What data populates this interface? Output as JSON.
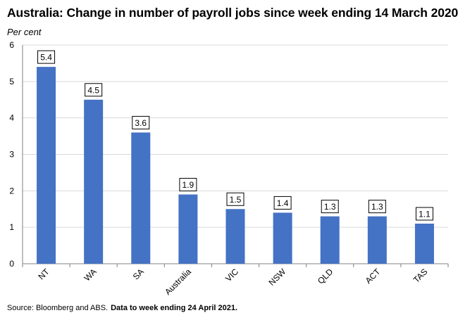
{
  "chart_data": {
    "type": "bar",
    "title": "Australia: Change in number of payroll jobs since week ending 14 March 2020",
    "ylabel": "Per cent",
    "xlabel": "",
    "categories": [
      "NT",
      "WA",
      "SA",
      "Australia",
      "VIC",
      "NSW",
      "QLD",
      "ACT",
      "TAS"
    ],
    "values": [
      5.4,
      4.5,
      3.6,
      1.9,
      1.5,
      1.4,
      1.3,
      1.3,
      1.1
    ],
    "data_labels": [
      "5.4",
      "4.5",
      "3.6",
      "1.9",
      "1.5",
      "1.4",
      "1.3",
      "1.3",
      "1.1"
    ],
    "ylim": [
      0,
      6
    ],
    "yticks": [
      0,
      1,
      2,
      3,
      4,
      5,
      6
    ],
    "grid": true,
    "bar_color": "#4472C4",
    "grid_color": "#d9d9d9"
  },
  "footer": {
    "source": "Source: Bloomberg and ABS.",
    "note": "Data to week ending  24 April 2021."
  }
}
